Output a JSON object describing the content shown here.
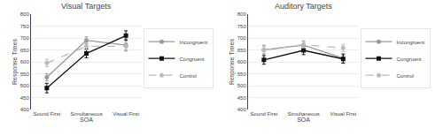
{
  "chart_data": [
    {
      "type": "line",
      "title": "Visual Targets",
      "categories": [
        "Sound First",
        "Simultaneous",
        "Visual First"
      ],
      "xlabel": "SOA",
      "ylabel": "Response Times",
      "ylim": [
        400,
        800
      ],
      "yticks": [
        400,
        450,
        500,
        550,
        600,
        650,
        700,
        750,
        800
      ],
      "grid": true,
      "legend": "right",
      "series": [
        {
          "name": "Incongruent",
          "color": "#999999",
          "marker": "circle",
          "line_style": "solid",
          "values": [
            535,
            690,
            670
          ],
          "errors": [
            15,
            15,
            25
          ]
        },
        {
          "name": "Congruent",
          "color": "#111111",
          "marker": "square",
          "line_style": "solid",
          "values": [
            490,
            635,
            710
          ],
          "errors": [
            20,
            18,
            20
          ]
        },
        {
          "name": "Control",
          "color": "#bbbbbb",
          "marker": "circle",
          "line_style": "dashed",
          "values": [
            595,
            665,
            665
          ],
          "errors": [
            15,
            15,
            15
          ]
        }
      ]
    },
    {
      "type": "line",
      "title": "Auditory Targets",
      "categories": [
        "Sound First",
        "Simultaneous",
        "Visual First"
      ],
      "xlabel": "SOA",
      "ylabel": "Response Times",
      "ylim": [
        400,
        800
      ],
      "yticks": [
        400,
        450,
        500,
        550,
        600,
        650,
        700,
        750,
        800
      ],
      "grid": true,
      "legend": "right",
      "series": [
        {
          "name": "Incongruent",
          "color": "#999999",
          "marker": "circle",
          "line_style": "solid",
          "values": [
            650,
            670,
            615
          ],
          "errors": [
            20,
            18,
            20
          ]
        },
        {
          "name": "Congruent",
          "color": "#111111",
          "marker": "square",
          "line_style": "solid",
          "values": [
            608,
            648,
            612
          ],
          "errors": [
            18,
            18,
            18
          ]
        },
        {
          "name": "Control",
          "color": "#bbbbbb",
          "marker": "circle",
          "line_style": "dashed",
          "values": [
            650,
            672,
            658
          ],
          "errors": [
            15,
            13,
            15
          ]
        }
      ]
    }
  ]
}
